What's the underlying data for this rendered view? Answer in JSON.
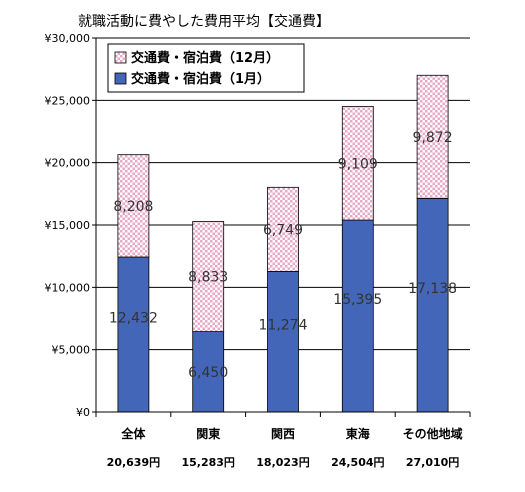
{
  "chart_data": {
    "type": "bar",
    "stacked": true,
    "title": "就職活動に費やした費用平均【交通費】",
    "categories": [
      "全体",
      "関東",
      "関西",
      "東海",
      "その他地域"
    ],
    "totals": [
      "20,639円",
      "15,283円",
      "18,023円",
      "24,504円",
      "27,010円"
    ],
    "series": [
      {
        "name": "交通費・宿泊費（1月）",
        "values": [
          12432,
          6450,
          11274,
          15395,
          17138
        ],
        "labels": [
          "12,432",
          "6,450",
          "11,274",
          "15,395",
          "17,138"
        ],
        "color": "#4466b8",
        "pattern": "solid"
      },
      {
        "name": "交通費・宿泊費（12月）",
        "values": [
          8208,
          8833,
          6749,
          9109,
          9872
        ],
        "labels": [
          "8,208",
          "8,833",
          "6,749",
          "9,109",
          "9,872"
        ],
        "color": "#e8a8c8",
        "pattern": "checker"
      }
    ],
    "ylim": [
      0,
      30000
    ],
    "yticks": [
      0,
      5000,
      10000,
      15000,
      20000,
      25000,
      30000
    ],
    "ytick_labels": [
      "¥0",
      "¥5,000",
      "¥10,000",
      "¥15,000",
      "¥20,000",
      "¥25,000",
      "¥30,000"
    ],
    "grid": true,
    "legend_position": "top-left",
    "legend_order": [
      "交通費・宿泊費（12月）",
      "交通費・宿泊費（1月）"
    ]
  }
}
